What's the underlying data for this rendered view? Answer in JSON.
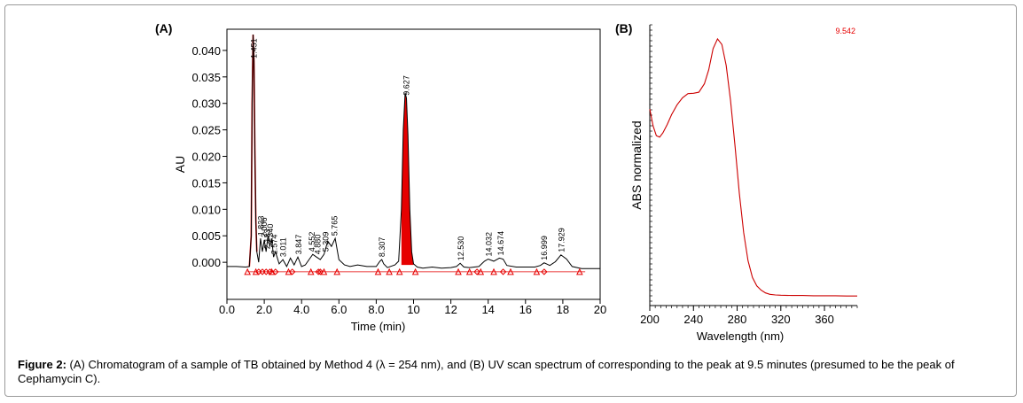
{
  "caption": {
    "label": "Figure 2:",
    "text": "(A) Chromatogram of a sample of TB obtained by Method 4 (λ = 254 nm), and (B) UV scan spectrum of corresponding to the peak at 9.5 minutes (presumed to be the peak of Cephamycin C)."
  },
  "chart_data": [
    {
      "panel": "(A)",
      "type": "line",
      "xlabel": "Time (min)",
      "ylabel": "AU",
      "xlim": [
        0,
        20
      ],
      "ylim": [
        -0.007,
        0.044
      ],
      "x_ticks": [
        "0.0",
        "2.0",
        "4.0",
        "6.0",
        "8.0",
        "10",
        "12",
        "14",
        "16",
        "18",
        "20"
      ],
      "y_ticks": [
        "0.000",
        "0.005",
        "0.010",
        "0.015",
        "0.020",
        "0.025",
        "0.030",
        "0.035",
        "0.040"
      ],
      "peak_labels": [
        {
          "t": 1.451,
          "label": "1.451"
        },
        {
          "t": 1.833,
          "label": "1.833"
        },
        {
          "t": 2.0,
          "label": "2.006"
        },
        {
          "t": 2.15,
          "label": "2.133"
        },
        {
          "t": 2.32,
          "label": "2.340"
        },
        {
          "t": 2.55,
          "label": "2.574"
        },
        {
          "t": 3.01,
          "label": "3.011"
        },
        {
          "t": 3.847,
          "label": "3.847"
        },
        {
          "t": 4.57,
          "label": "4.552"
        },
        {
          "t": 4.87,
          "label": "4.880"
        },
        {
          "t": 5.3,
          "label": "5.309"
        },
        {
          "t": 5.765,
          "label": "5.765"
        },
        {
          "t": 8.307,
          "label": "8.307"
        },
        {
          "t": 9.627,
          "label": "9.627"
        },
        {
          "t": 12.53,
          "label": "12.530"
        },
        {
          "t": 14.032,
          "label": "14.032"
        },
        {
          "t": 14.674,
          "label": "14.674"
        },
        {
          "t": 16.999,
          "label": "16.999"
        },
        {
          "t": 17.929,
          "label": "17.929"
        }
      ],
      "series": [
        {
          "x": [
            0,
            0.5,
            1.0,
            1.2,
            1.3,
            1.35,
            1.4,
            1.45,
            1.5,
            1.55,
            1.6,
            1.7,
            1.8,
            1.9,
            2.0,
            2.1,
            2.2,
            2.3,
            2.4,
            2.5,
            2.6,
            2.8,
            3.0,
            3.2,
            3.4,
            3.6,
            3.8,
            4.0,
            4.2,
            4.4,
            4.6,
            4.8,
            5.0,
            5.2,
            5.4,
            5.6,
            5.8,
            6.0,
            6.3,
            6.6,
            7.0,
            7.5,
            8.0,
            8.2,
            8.3,
            8.4,
            8.6,
            9.0,
            9.2,
            9.35,
            9.45,
            9.55,
            9.62,
            9.7,
            9.8,
            9.9,
            10.0,
            10.2,
            10.5,
            11.0,
            11.5,
            12.0,
            12.3,
            12.5,
            12.7,
            13.0,
            13.5,
            13.8,
            14.0,
            14.3,
            14.6,
            14.8,
            15.0,
            15.5,
            16.0,
            16.5,
            16.8,
            17.0,
            17.3,
            17.6,
            17.9,
            18.2,
            18.5,
            19.0,
            19.5,
            20.0
          ],
          "y": [
            -0.0008,
            -0.0008,
            -0.0009,
            -0.0008,
            0.005,
            0.03,
            0.043,
            0.038,
            0.02,
            0.008,
            0.002,
            0.0,
            0.0045,
            0.002,
            0.0042,
            0.002,
            0.005,
            0.003,
            0.0045,
            0.001,
            0.002,
            -0.0003,
            0.0005,
            -0.0008,
            0.0008,
            -0.0005,
            0.001,
            -0.0008,
            -0.0005,
            0.0005,
            0.0015,
            0.001,
            0.0005,
            0.0015,
            0.004,
            0.003,
            0.0045,
            0.0005,
            -0.0005,
            -0.0008,
            -0.0005,
            -0.0008,
            -0.0008,
            0.0002,
            0.0005,
            -0.0003,
            -0.001,
            -0.0005,
            0.0002,
            0.01,
            0.025,
            0.032,
            0.031,
            0.024,
            0.01,
            0.002,
            -0.0003,
            -0.0009,
            -0.0011,
            -0.0009,
            -0.0011,
            -0.001,
            -0.0008,
            -0.0002,
            -0.0009,
            -0.001,
            -0.0008,
            0.0002,
            0.0006,
            0.0002,
            0.0008,
            0.0006,
            -0.0006,
            -0.0009,
            -0.0009,
            -0.0009,
            -0.0006,
            -0.0001,
            -0.0006,
            0.0001,
            0.0014,
            0.0006,
            -0.0008,
            -0.0012,
            -0.0012,
            -0.0012
          ]
        }
      ]
    },
    {
      "panel": "(B)",
      "type": "line",
      "xlabel": "Wavelength (nm)",
      "ylabel": "ABS normalized",
      "xlim": [
        200,
        390
      ],
      "ylim": [
        0,
        1
      ],
      "x_ticks": [
        "200",
        "240",
        "280",
        "320",
        "360"
      ],
      "annotation": "9.542",
      "series": [
        {
          "x": [
            200,
            203,
            206,
            209,
            212,
            216,
            220,
            225,
            230,
            235,
            240,
            245,
            250,
            254,
            258,
            262,
            266,
            270,
            274,
            278,
            282,
            286,
            290,
            294,
            298,
            302,
            306,
            310,
            315,
            320,
            330,
            340,
            350,
            360,
            370,
            380,
            390
          ],
          "y": [
            0.7,
            0.64,
            0.605,
            0.6,
            0.615,
            0.645,
            0.68,
            0.715,
            0.74,
            0.755,
            0.756,
            0.76,
            0.79,
            0.84,
            0.915,
            0.95,
            0.93,
            0.855,
            0.73,
            0.57,
            0.4,
            0.26,
            0.16,
            0.1,
            0.07,
            0.055,
            0.045,
            0.04,
            0.038,
            0.037,
            0.036,
            0.036,
            0.035,
            0.035,
            0.035,
            0.034,
            0.034
          ]
        }
      ]
    }
  ]
}
